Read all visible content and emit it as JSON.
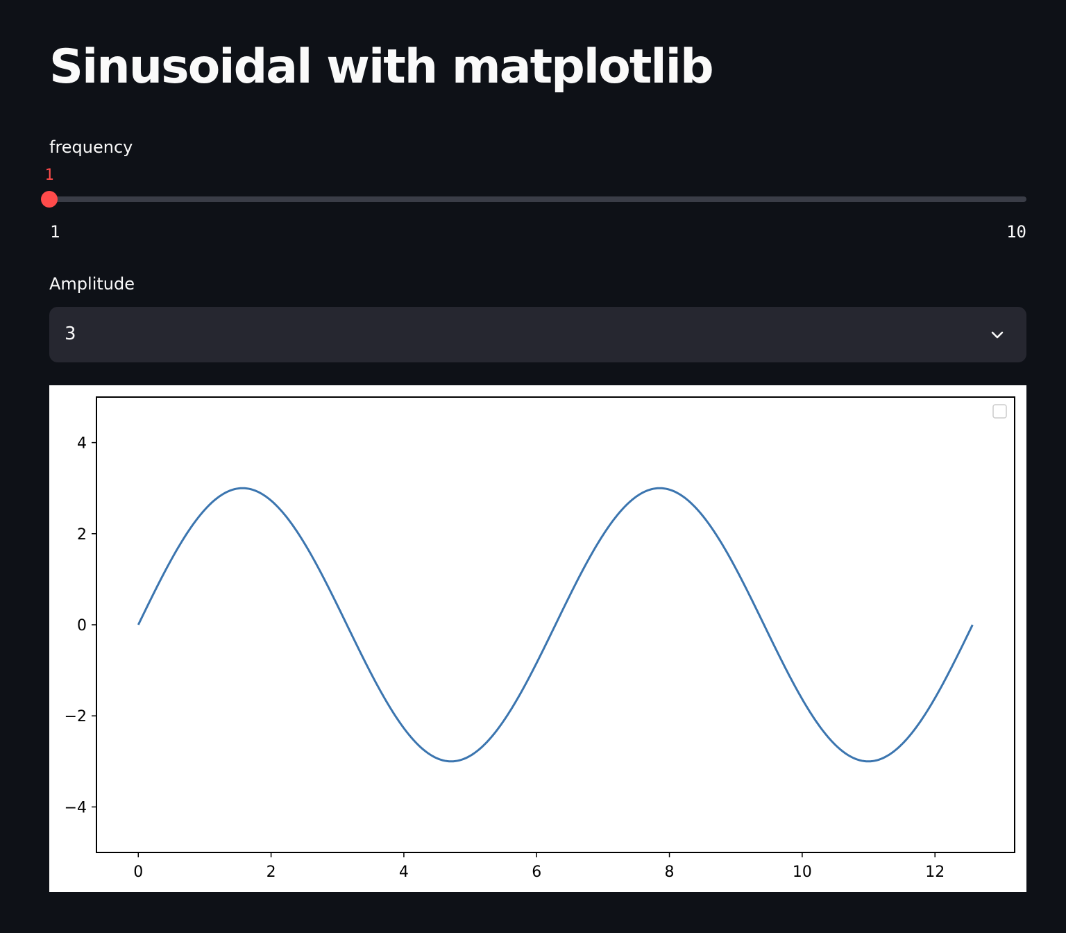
{
  "page": {
    "title": "Sinusoidal with matplotlib"
  },
  "slider": {
    "label": "frequency",
    "value": 1,
    "value_text": "1",
    "min": 1,
    "max": 10,
    "min_text": "1",
    "max_text": "10"
  },
  "select": {
    "label": "Amplitude",
    "selected": "3"
  },
  "colors": {
    "background": "#0e1117",
    "accent": "#ff4b4b",
    "line": "#3b75af"
  },
  "chart_data": {
    "type": "line",
    "function": "y = 3 * sin(1 * x)",
    "series": [
      {
        "color": "#3b75af",
        "x_range": [
          0,
          12.566
        ],
        "amplitude": 3,
        "frequency": 1,
        "x": [
          0,
          0.785,
          1.571,
          2.356,
          3.142,
          3.927,
          4.712,
          5.498,
          6.283,
          7.069,
          7.854,
          8.639,
          9.425,
          10.21,
          10.996,
          11.781,
          12.566
        ],
        "y": [
          0,
          2.12,
          3,
          2.12,
          0,
          -2.12,
          -3,
          -2.12,
          0,
          2.12,
          3,
          2.12,
          0,
          -2.12,
          -3,
          -2.12,
          0
        ]
      }
    ],
    "xlim": [
      -0.63,
      13.2
    ],
    "ylim": [
      -5,
      5
    ],
    "xticks": [
      0,
      2,
      4,
      6,
      8,
      10,
      12
    ],
    "xtick_labels": [
      "0",
      "2",
      "4",
      "6",
      "8",
      "10",
      "12"
    ],
    "yticks": [
      4,
      2,
      0,
      -2,
      -4
    ],
    "ytick_labels": [
      "4",
      "2",
      "0",
      "−2",
      "−4"
    ],
    "legend": "top-right (empty)",
    "grid": false,
    "title": "",
    "xlabel": "",
    "ylabel": ""
  }
}
